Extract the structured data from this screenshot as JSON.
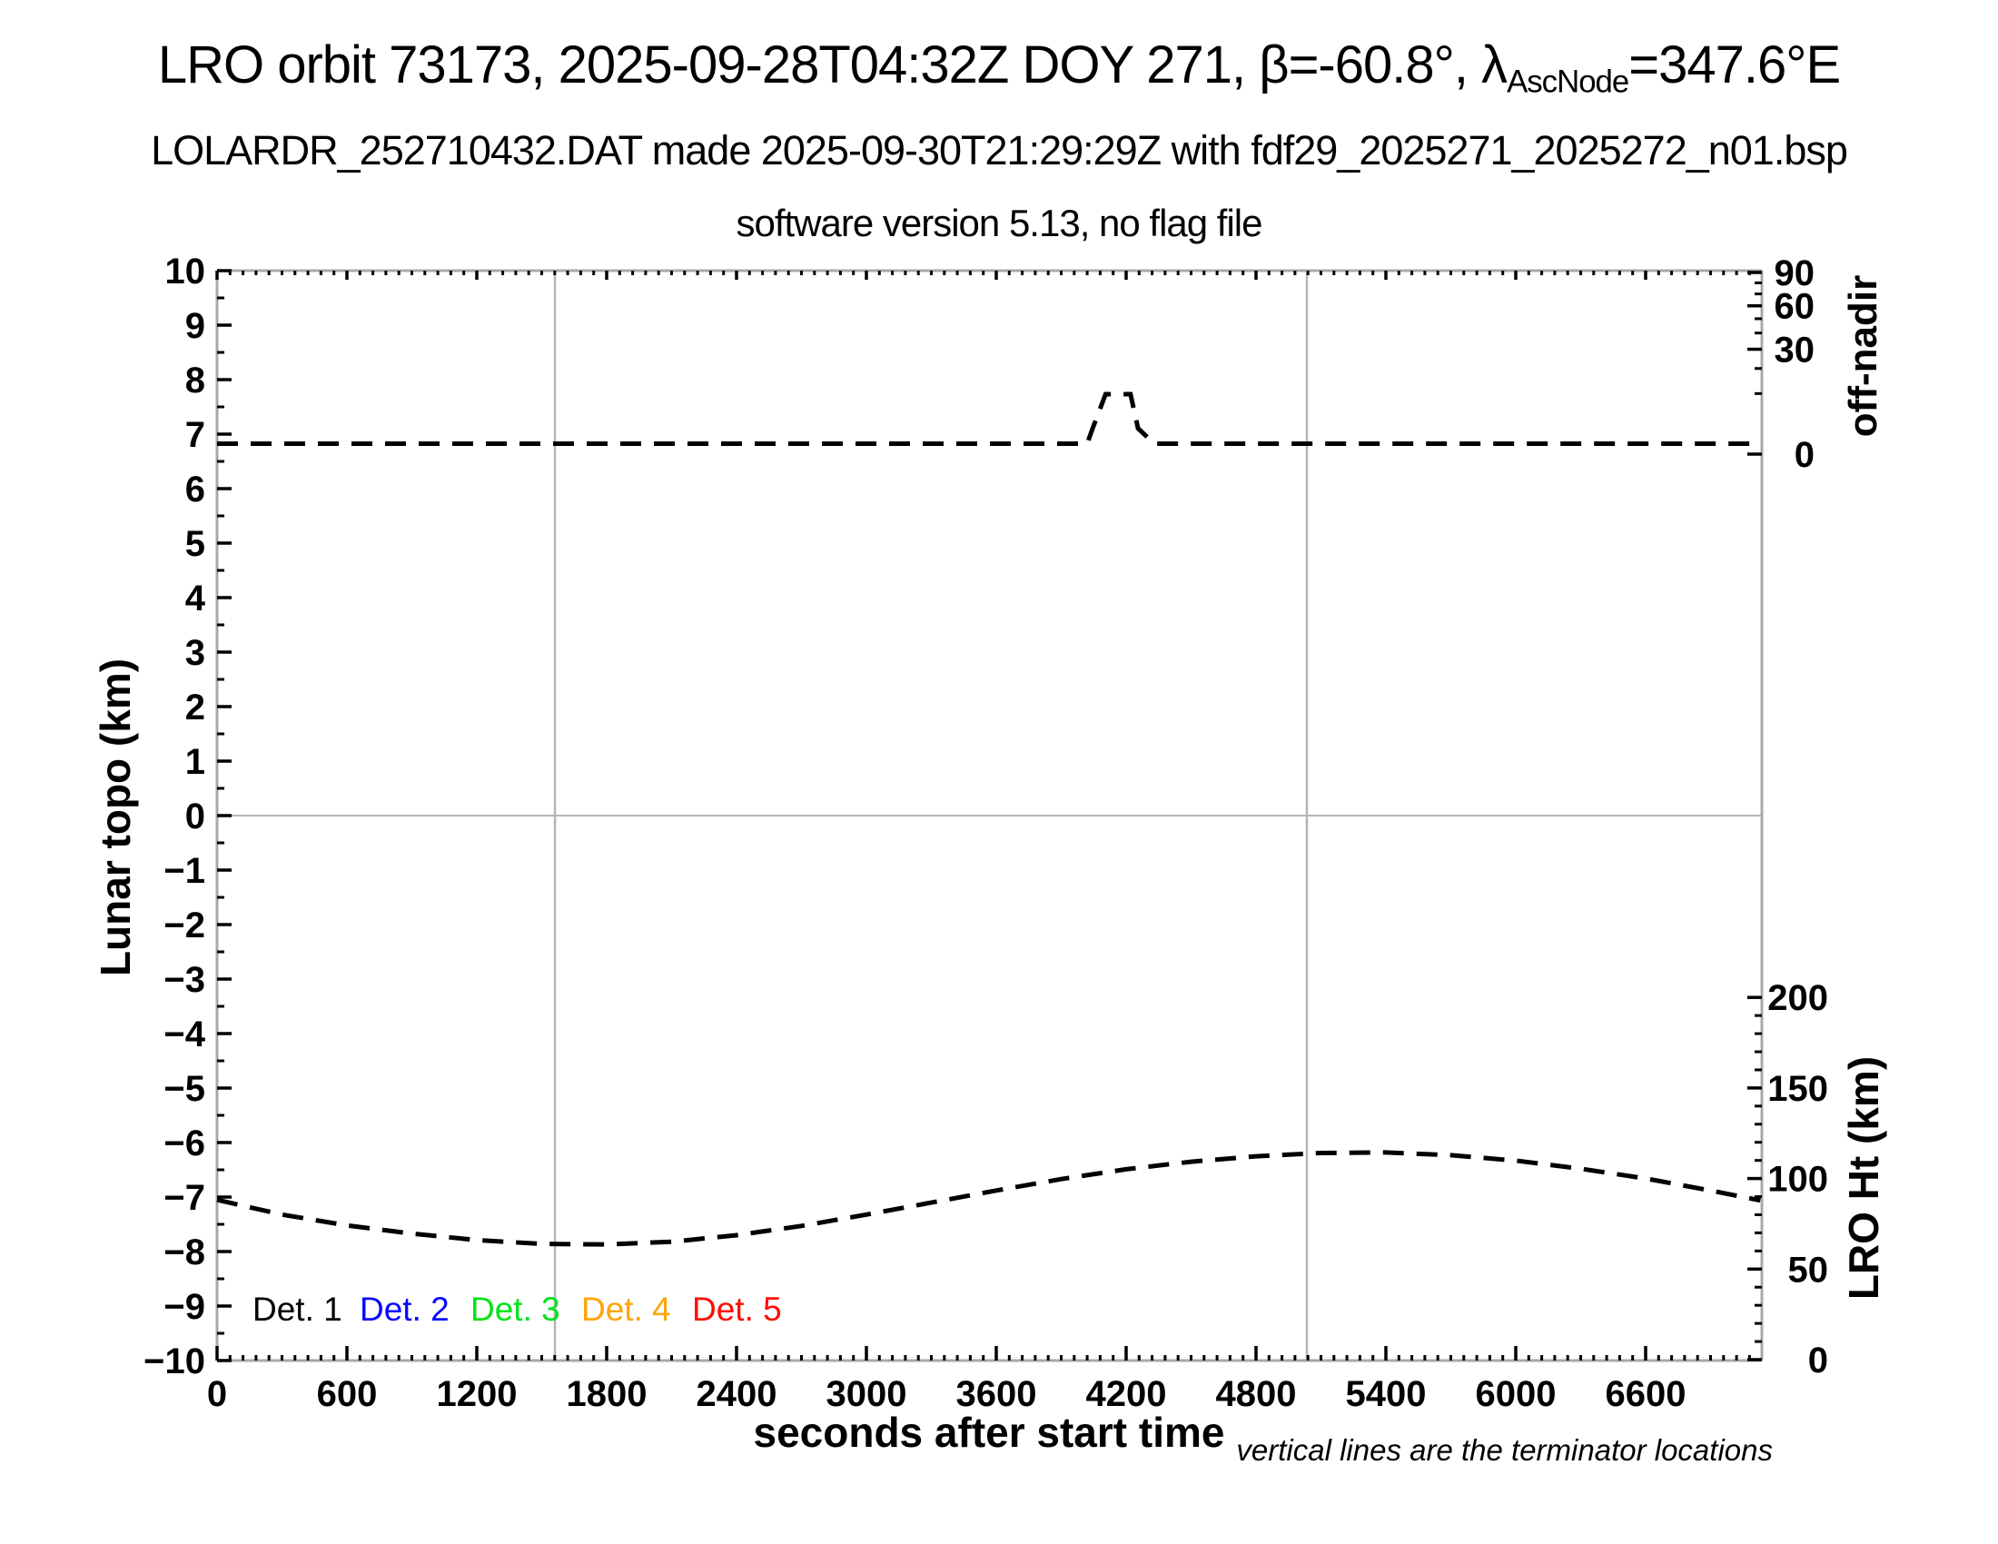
{
  "header": {
    "title_prefix": "LRO orbit 73173, 2025-09-28T04:32Z DOY 271, β=-60.8°, λ",
    "title_subscript": "AscNode",
    "title_suffix": "=347.6°E",
    "subtitle1": "LOLARDR_252710432.DAT made 2025-09-30T21:29:29Z with fdf29_2025271_2025272_n01.bsp",
    "subtitle2": "software version 5.13, no flag file"
  },
  "footnote": "vertical lines are the terminator locations",
  "chart_data": {
    "type": "line",
    "xlabel": "seconds after start time",
    "ylabel_left": "Lunar topo (km)",
    "ylabel_right_top": "off-nadir",
    "ylabel_right_bottom": "LRO Ht (km)",
    "xlim": [
      0,
      7137
    ],
    "x_major_ticks": [
      0,
      600,
      1200,
      1800,
      2400,
      3000,
      3600,
      4200,
      4800,
      5400,
      6000,
      6600
    ],
    "x_minor_step": 60,
    "ylim_left": [
      -10,
      10
    ],
    "y_left_major_step": 1,
    "y_left_minor_step": 0.5,
    "offnadir_axis": {
      "ticks": [
        0,
        30,
        60,
        90
      ],
      "minor_step": 10,
      "scale": "sqrt(angle/90)"
    },
    "lro_ht_axis": {
      "ticks": [
        0,
        50,
        100,
        150,
        200
      ],
      "minor_step": 10
    },
    "terminator_lines_seconds": [
      1561,
      5035
    ],
    "zero_line_topo": 0,
    "grid_color": "#b4b4b4",
    "frame_color": "#a9a9a9",
    "series": [
      {
        "name": "off-nadir angle",
        "axis": "offnadir",
        "units": "degrees",
        "style": "dashed",
        "color": "#000000",
        "points": [
          [
            0,
            0.3
          ],
          [
            4020,
            0.3
          ],
          [
            4045,
            1.8
          ],
          [
            4105,
            9.8
          ],
          [
            4220,
            9.8
          ],
          [
            4255,
            1.8
          ],
          [
            4330,
            0.3
          ],
          [
            7137,
            0.3
          ]
        ]
      },
      {
        "name": "LRO height",
        "axis": "lro_ht",
        "units": "km",
        "style": "dashed",
        "color": "#000000",
        "points": [
          [
            0,
            88.2
          ],
          [
            300,
            80.1
          ],
          [
            600,
            74.1
          ],
          [
            900,
            69.6
          ],
          [
            1200,
            66.0
          ],
          [
            1500,
            63.9
          ],
          [
            1800,
            63.6
          ],
          [
            2100,
            65.1
          ],
          [
            2400,
            68.7
          ],
          [
            2700,
            73.8
          ],
          [
            3000,
            80.1
          ],
          [
            3300,
            86.7
          ],
          [
            3600,
            93.4
          ],
          [
            3900,
            99.7
          ],
          [
            4200,
            105.1
          ],
          [
            4500,
            109.3
          ],
          [
            4800,
            112.3
          ],
          [
            5100,
            114.1
          ],
          [
            5400,
            114.4
          ],
          [
            5700,
            112.9
          ],
          [
            6000,
            109.9
          ],
          [
            6300,
            105.4
          ],
          [
            6600,
            100.0
          ],
          [
            6900,
            93.4
          ],
          [
            7130,
            87.9
          ]
        ]
      }
    ],
    "legend": {
      "items": [
        {
          "label": "Det. 1",
          "color": "#000000",
          "x": 278
        },
        {
          "label": "Det. 2",
          "color": "#0808ff",
          "x": 396
        },
        {
          "label": "Det. 3",
          "color": "#00e418",
          "x": 518
        },
        {
          "label": "Det. 4",
          "color": "#ffa408",
          "x": 640
        },
        {
          "label": "Det. 5",
          "color": "#ff0e00",
          "x": 762
        }
      ]
    }
  }
}
